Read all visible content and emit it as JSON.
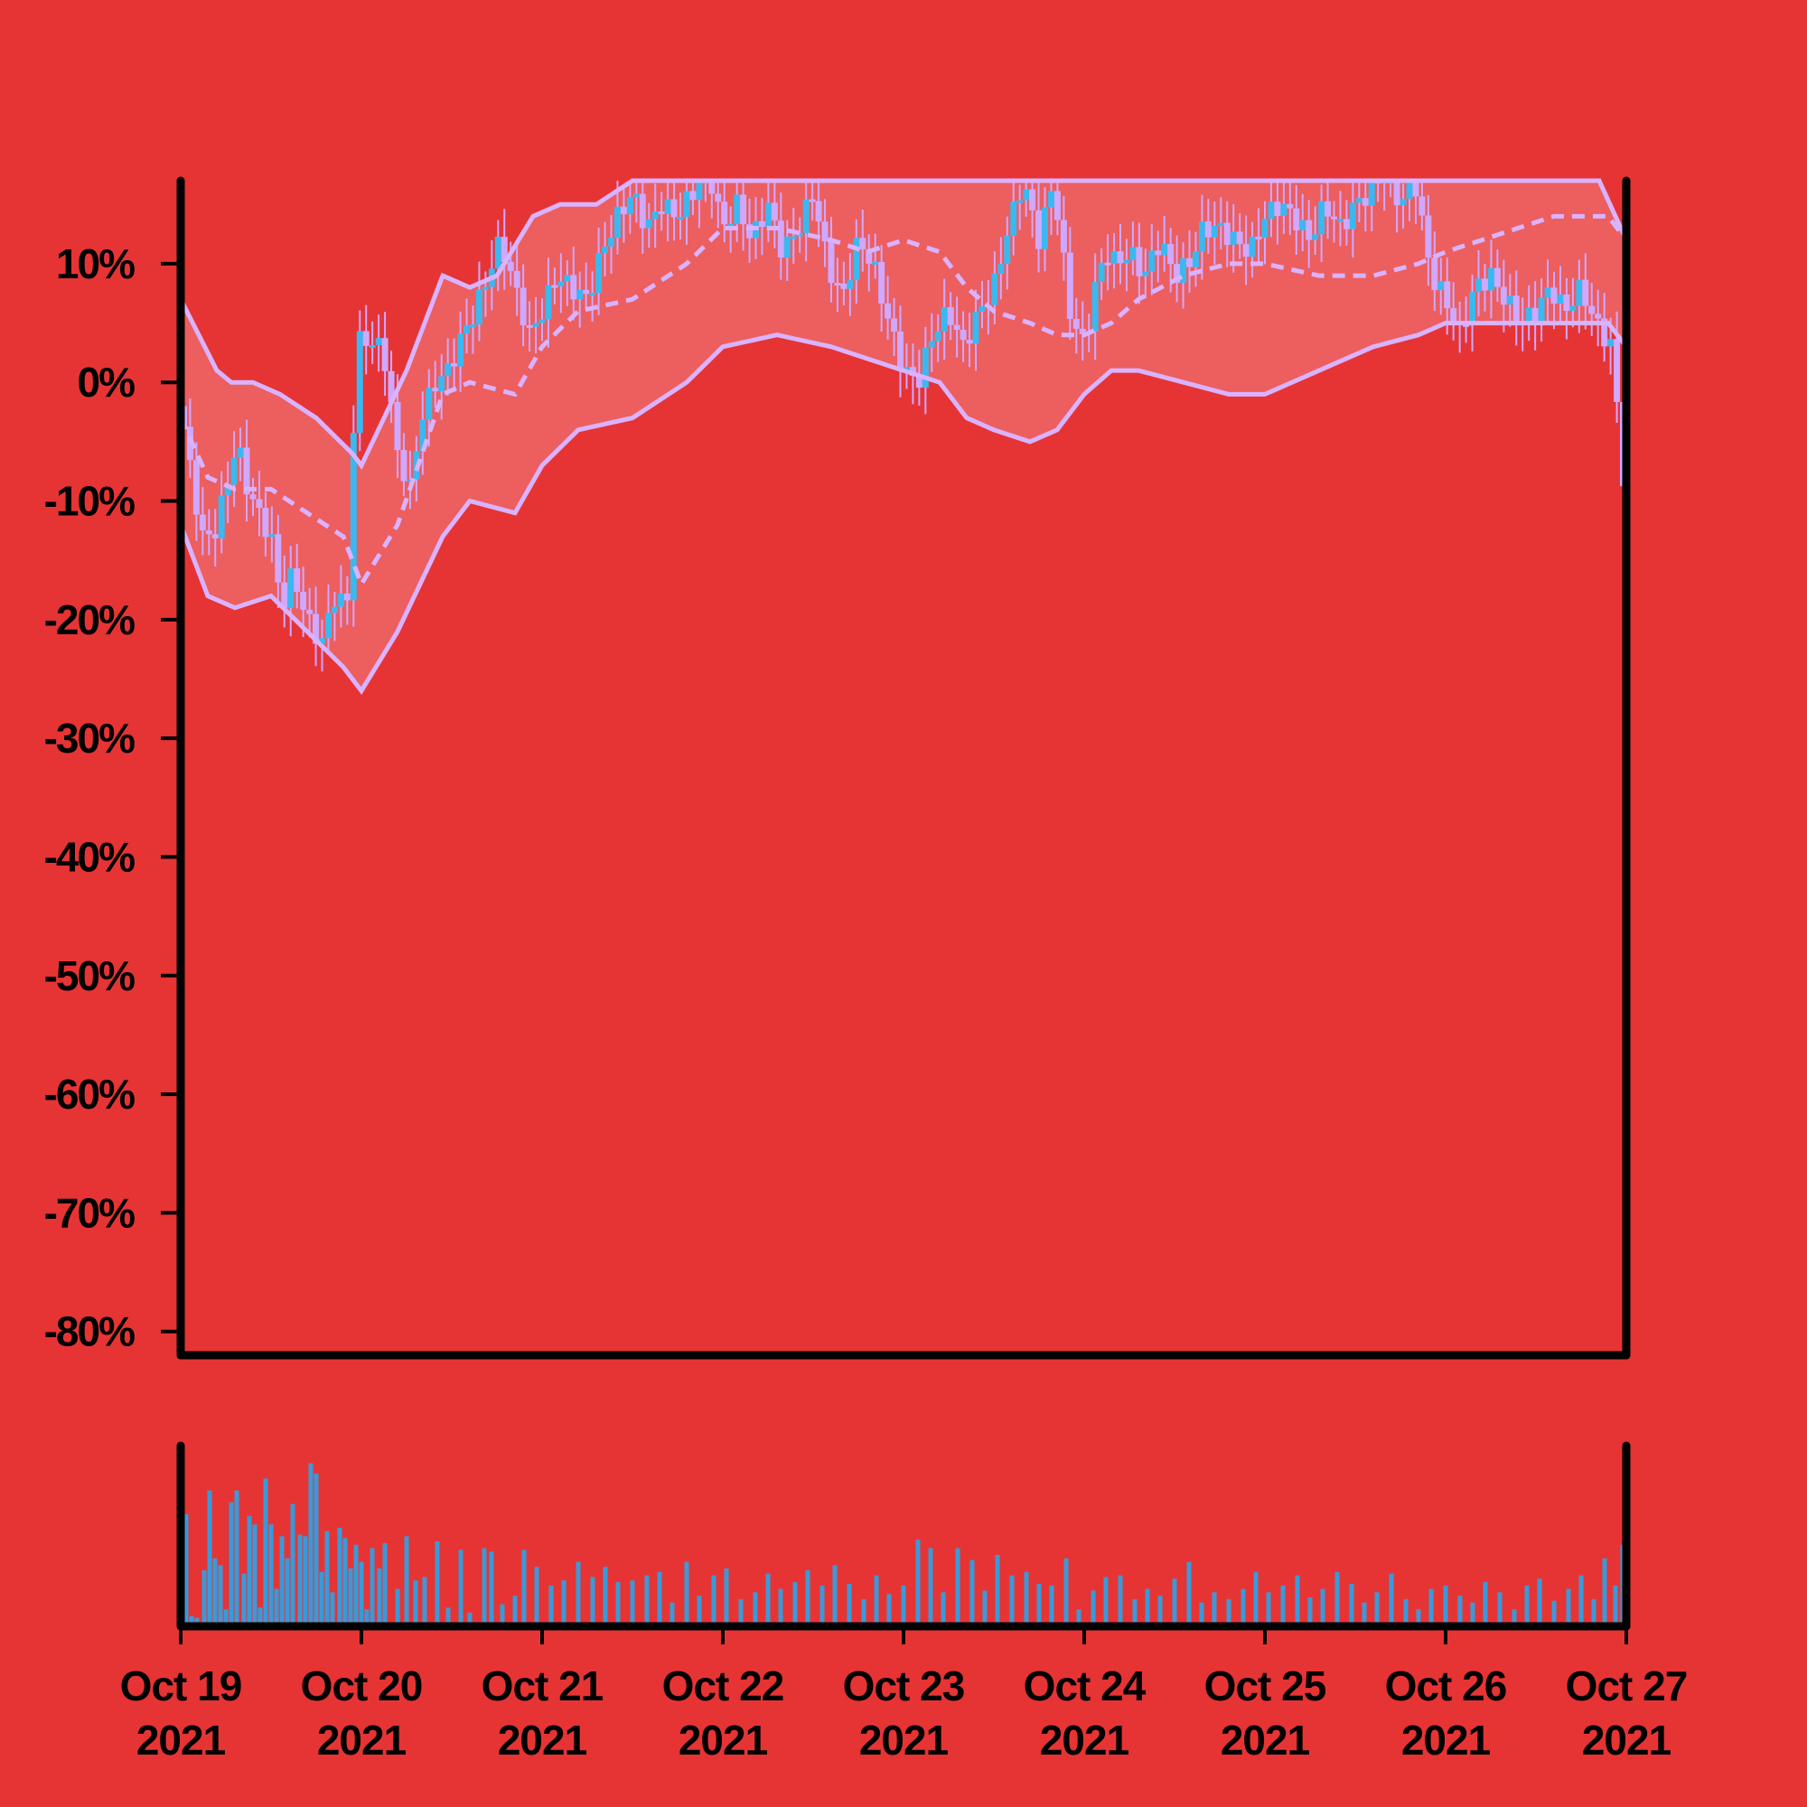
{
  "chart_data": {
    "type": "candlestick",
    "title": "",
    "xlabel": "",
    "ylabel": "",
    "y_unit": "percent",
    "ylim": [
      -82,
      17
    ],
    "y_ticks": [
      10,
      0,
      -10,
      -20,
      -30,
      -40,
      -50,
      -60,
      -70,
      -80
    ],
    "y_tick_labels": [
      "10%",
      "0%",
      "-10%",
      "-20%",
      "-30%",
      "-40%",
      "-50%",
      "-60%",
      "-70%",
      "-80%"
    ],
    "x_range": [
      "2021-10-19",
      "2021-10-27"
    ],
    "x_ticks": [
      "2021-10-19",
      "2021-10-20",
      "2021-10-21",
      "2021-10-22",
      "2021-10-23",
      "2021-10-24",
      "2021-10-25",
      "2021-10-26",
      "2021-10-27"
    ],
    "x_tick_labels": [
      {
        "line1": "Oct 19",
        "line2": "2021"
      },
      {
        "line1": "Oct 20",
        "line2": "2021"
      },
      {
        "line1": "Oct 21",
        "line2": "2021"
      },
      {
        "line1": "Oct 22",
        "line2": "2021"
      },
      {
        "line1": "Oct 23",
        "line2": "2021"
      },
      {
        "line1": "Oct 24",
        "line2": "2021"
      },
      {
        "line1": "Oct 25",
        "line2": "2021"
      },
      {
        "line1": "Oct 26",
        "line2": "2021"
      },
      {
        "line1": "Oct 27",
        "line2": "2021"
      }
    ],
    "grid": false,
    "legend": "none",
    "indicators": [
      "bollinger-bands-upper",
      "bollinger-bands-middle-dashed",
      "bollinger-bands-lower",
      "volume-bars"
    ],
    "close_path": {
      "x": [
        0.0,
        0.06,
        0.12,
        0.18,
        0.25,
        0.31,
        0.37,
        0.43,
        0.5,
        0.56,
        0.62,
        0.7,
        0.78,
        0.85,
        0.92,
        0.97,
        1.0,
        1.08,
        1.12,
        1.2,
        1.27,
        1.33,
        1.41,
        1.48,
        1.56,
        1.63,
        1.7,
        1.77,
        1.85,
        1.93,
        2.0,
        2.08,
        2.16,
        2.25,
        2.33,
        2.42,
        2.5,
        2.58,
        2.66,
        2.75,
        2.83,
        2.92,
        3.0,
        3.08,
        3.16,
        3.25,
        3.33,
        3.42,
        3.5,
        3.58,
        3.66,
        3.75,
        3.83,
        3.92,
        4.0,
        4.08,
        4.16,
        4.25,
        4.33,
        4.42,
        4.5,
        4.58,
        4.66,
        4.75,
        4.83,
        4.92,
        5.0,
        5.06,
        5.12,
        5.18,
        5.25,
        5.33,
        5.42,
        5.5,
        5.58,
        5.66,
        5.75,
        5.83,
        5.92,
        6.0,
        6.08,
        6.16,
        6.25,
        6.33,
        6.42,
        6.5,
        6.58,
        6.66,
        6.75,
        6.83,
        6.92,
        7.0,
        7.08,
        7.16,
        7.25,
        7.33,
        7.42,
        7.5,
        7.58,
        7.66,
        7.75,
        7.83,
        7.92,
        8.0
      ],
      "y": [
        -2,
        -8,
        -13,
        -13,
        -9,
        -5,
        -9,
        -11,
        -13,
        -19,
        -16,
        -20,
        -22,
        -18,
        -19,
        2,
        4,
        3,
        3,
        -6,
        -9,
        -3,
        0,
        1,
        4,
        6,
        9,
        12,
        8,
        4,
        6,
        9,
        8,
        7,
        11,
        14,
        16,
        13,
        15,
        14,
        16,
        18,
        13,
        15,
        12,
        15,
        11,
        13,
        16,
        10,
        7,
        12,
        10,
        5,
        1,
        0,
        4,
        6,
        3,
        6,
        8,
        13,
        17,
        12,
        17,
        6,
        3,
        8,
        11,
        10,
        11,
        9,
        12,
        9,
        10,
        13,
        13,
        12,
        11,
        14,
        15,
        14,
        12,
        15,
        13,
        15,
        16,
        18,
        15,
        17,
        9,
        7,
        4,
        8,
        9,
        7,
        5,
        6,
        8,
        6,
        8,
        5,
        3,
        -11
      ],
      "note": "approximate close values read from candles"
    },
    "bollinger_upper": {
      "x": [
        0.0,
        0.2,
        0.28,
        0.4,
        0.55,
        0.75,
        0.95,
        1.0,
        1.25,
        1.45,
        1.6,
        1.75,
        1.95,
        2.1,
        2.3,
        2.5,
        2.75,
        3.0,
        3.25,
        3.5,
        3.75,
        4.0,
        4.25,
        4.5,
        4.75,
        5.0,
        5.2,
        5.4,
        5.6,
        5.7,
        5.9,
        6.0,
        6.2,
        6.5,
        6.8,
        7.0,
        7.2,
        7.5,
        7.7,
        7.85,
        8.0
      ],
      "y": [
        7,
        1,
        0,
        0,
        -1,
        -3,
        -6,
        -7,
        1,
        9,
        8,
        9,
        14,
        15,
        15,
        17,
        17,
        17,
        17,
        17,
        17,
        17,
        17,
        17,
        17,
        17,
        17,
        17,
        17,
        17,
        17,
        17,
        17,
        17,
        17,
        17,
        17,
        17,
        17,
        17,
        12
      ]
    },
    "bollinger_middle": {
      "x": [
        0.0,
        0.15,
        0.3,
        0.5,
        0.7,
        0.9,
        1.0,
        1.2,
        1.45,
        1.6,
        1.85,
        2.0,
        2.2,
        2.5,
        2.8,
        3.0,
        3.3,
        3.6,
        3.8,
        4.0,
        4.2,
        4.35,
        4.5,
        4.7,
        4.85,
        5.0,
        5.15,
        5.3,
        5.55,
        5.8,
        6.0,
        6.3,
        6.6,
        6.85,
        7.0,
        7.2,
        7.4,
        7.6,
        7.75,
        7.9,
        8.0
      ],
      "y": [
        -3,
        -8,
        -9,
        -9,
        -11,
        -13,
        -17,
        -12,
        -1,
        0,
        -1,
        3,
        6,
        7,
        10,
        13,
        13,
        12,
        11,
        12,
        11,
        8,
        6,
        5,
        4,
        4,
        5,
        7,
        9,
        10,
        10,
        9,
        9,
        10,
        11,
        12,
        13,
        14,
        14,
        14,
        12
      ]
    },
    "bollinger_lower": {
      "x": [
        0.0,
        0.15,
        0.3,
        0.5,
        0.7,
        0.9,
        1.0,
        1.2,
        1.45,
        1.6,
        1.85,
        2.0,
        2.2,
        2.5,
        2.8,
        3.0,
        3.3,
        3.6,
        3.8,
        4.0,
        4.2,
        4.35,
        4.5,
        4.7,
        4.85,
        5.0,
        5.15,
        5.3,
        5.55,
        5.8,
        6.0,
        6.3,
        6.6,
        6.85,
        7.0,
        7.2,
        7.4,
        7.6,
        7.75,
        7.9,
        8.0
      ],
      "y": [
        -12,
        -18,
        -19,
        -18,
        -21,
        -24,
        -26,
        -21,
        -13,
        -10,
        -11,
        -7,
        -4,
        -3,
        0,
        3,
        4,
        3,
        2,
        1,
        0,
        -3,
        -4,
        -5,
        -4,
        -1,
        1,
        1,
        0,
        -1,
        -1,
        1,
        3,
        4,
        5,
        5,
        5,
        5,
        5,
        5,
        3
      ]
    },
    "volume": {
      "x": [
        0.03,
        0.06,
        0.09,
        0.13,
        0.16,
        0.19,
        0.22,
        0.25,
        0.28,
        0.31,
        0.35,
        0.38,
        0.41,
        0.44,
        0.47,
        0.5,
        0.53,
        0.56,
        0.59,
        0.62,
        0.66,
        0.69,
        0.72,
        0.75,
        0.78,
        0.81,
        0.84,
        0.88,
        0.91,
        0.94,
        0.97,
        1.0,
        1.03,
        1.06,
        1.1,
        1.13,
        1.2,
        1.25,
        1.3,
        1.35,
        1.42,
        1.48,
        1.55,
        1.6,
        1.68,
        1.72,
        1.78,
        1.85,
        1.9,
        1.97,
        2.05,
        2.12,
        2.2,
        2.28,
        2.35,
        2.42,
        2.5,
        2.58,
        2.65,
        2.72,
        2.8,
        2.87,
        2.95,
        3.02,
        3.1,
        3.18,
        3.25,
        3.32,
        3.4,
        3.47,
        3.55,
        3.62,
        3.7,
        3.78,
        3.85,
        3.92,
        4.0,
        4.08,
        4.15,
        4.22,
        4.3,
        4.38,
        4.45,
        4.52,
        4.6,
        4.68,
        4.75,
        4.82,
        4.9,
        4.97,
        5.05,
        5.12,
        5.2,
        5.28,
        5.35,
        5.42,
        5.5,
        5.58,
        5.65,
        5.72,
        5.8,
        5.88,
        5.95,
        6.02,
        6.1,
        6.18,
        6.25,
        6.32,
        6.4,
        6.48,
        6.55,
        6.62,
        6.7,
        6.78,
        6.85,
        6.92,
        7.0,
        7.08,
        7.15,
        7.22,
        7.3,
        7.38,
        7.45,
        7.52,
        7.6,
        7.68,
        7.75,
        7.82,
        7.88,
        7.94,
        7.98
      ],
      "values": [
        0.66,
        0.06,
        0.05,
        0.33,
        0.8,
        0.4,
        0.36,
        0.1,
        0.73,
        0.8,
        0.31,
        0.65,
        0.6,
        0.11,
        0.87,
        0.6,
        0.22,
        0.53,
        0.4,
        0.72,
        0.54,
        0.53,
        0.96,
        0.9,
        0.32,
        0.56,
        0.2,
        0.58,
        0.52,
        0.34,
        0.48,
        0.38,
        0.1,
        0.46,
        0.34,
        0.49,
        0.22,
        0.53,
        0.27,
        0.29,
        0.5,
        0.11,
        0.45,
        0.08,
        0.46,
        0.44,
        0.13,
        0.18,
        0.45,
        0.35,
        0.24,
        0.27,
        0.38,
        0.29,
        0.35,
        0.26,
        0.27,
        0.3,
        0.32,
        0.14,
        0.38,
        0.18,
        0.3,
        0.34,
        0.16,
        0.2,
        0.31,
        0.22,
        0.26,
        0.33,
        0.24,
        0.36,
        0.25,
        0.16,
        0.3,
        0.19,
        0.24,
        0.51,
        0.46,
        0.2,
        0.46,
        0.39,
        0.21,
        0.42,
        0.3,
        0.32,
        0.25,
        0.24,
        0.4,
        0.1,
        0.21,
        0.29,
        0.3,
        0.16,
        0.22,
        0.18,
        0.28,
        0.38,
        0.14,
        0.2,
        0.16,
        0.22,
        0.32,
        0.2,
        0.24,
        0.3,
        0.17,
        0.22,
        0.32,
        0.25,
        0.14,
        0.2,
        0.31,
        0.16,
        0.1,
        0.22,
        0.24,
        0.18,
        0.14,
        0.26,
        0.2,
        0.1,
        0.24,
        0.28,
        0.15,
        0.22,
        0.3,
        0.16,
        0.4,
        0.24,
        0.48
      ]
    }
  },
  "colors": {
    "background": "#e63434",
    "band_fill": "#ed5e5e",
    "band_line": "#d9b3ff",
    "candle": "#3ab8f0",
    "candle_body_alt": "#cfa8ff",
    "volume_bar": "#3a9ad9",
    "axis": "#000000"
  }
}
